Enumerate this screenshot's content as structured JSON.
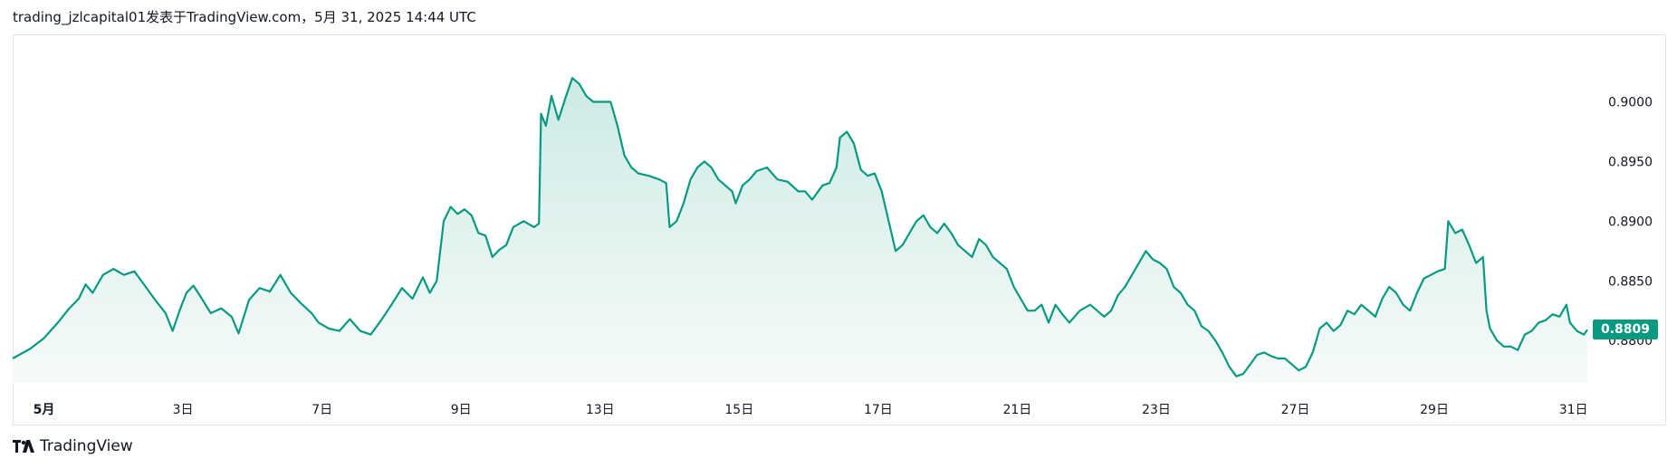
{
  "header": {
    "title": "trading_jzlcapital01发表于TradingView.com，5月 31, 2025 14:44 UTC"
  },
  "brand": {
    "logo_icon": "tradingview-logo-icon",
    "name": "TradingView"
  },
  "last_price_label": "0.8809",
  "colors": {
    "line": "#089981",
    "fill_top": "#cdeae4",
    "fill_bottom": "#f6fbfa",
    "tag_bg": "#089981",
    "axis_text": "#131722"
  },
  "chart_data": {
    "type": "area",
    "title": "",
    "xlabel": "",
    "ylabel": "",
    "grid": false,
    "x_ticks": [
      {
        "day": 1,
        "label": "5月"
      },
      {
        "day": 3,
        "label": "3日"
      },
      {
        "day": 5,
        "label": "7日"
      },
      {
        "day": 7,
        "label": "9日"
      },
      {
        "day": 9,
        "label": "13日"
      },
      {
        "day": 11,
        "label": "15日"
      },
      {
        "day": 13,
        "label": "17日"
      },
      {
        "day": 15,
        "label": "21日"
      },
      {
        "day": 17,
        "label": "23日"
      },
      {
        "day": 19,
        "label": "27日"
      },
      {
        "day": 21,
        "label": "29日"
      },
      {
        "day": 23,
        "label": "31日"
      }
    ],
    "y_ticks": [
      "0.8800",
      "0.8850",
      "0.8900",
      "0.8950",
      "0.9000"
    ],
    "xlim": [
      0.55,
      23.5
    ],
    "ylim": [
      0.87645,
      0.90565
    ],
    "last_value": 0.8809,
    "series": [
      {
        "points": [
          [
            0.55,
            0.8785
          ],
          [
            0.8,
            0.8793
          ],
          [
            1.0,
            0.8802
          ],
          [
            1.2,
            0.8815
          ],
          [
            1.35,
            0.8826
          ],
          [
            1.5,
            0.8835
          ],
          [
            1.6,
            0.8847
          ],
          [
            1.7,
            0.884
          ],
          [
            1.85,
            0.8855
          ],
          [
            2.0,
            0.886
          ],
          [
            2.15,
            0.8855
          ],
          [
            2.3,
            0.8858
          ],
          [
            2.45,
            0.8846
          ],
          [
            2.6,
            0.8834
          ],
          [
            2.75,
            0.8823
          ],
          [
            2.85,
            0.8808
          ],
          [
            2.95,
            0.8825
          ],
          [
            3.05,
            0.884
          ],
          [
            3.15,
            0.8846
          ],
          [
            3.25,
            0.8837
          ],
          [
            3.4,
            0.8823
          ],
          [
            3.55,
            0.8827
          ],
          [
            3.7,
            0.882
          ],
          [
            3.8,
            0.8806
          ],
          [
            3.95,
            0.8834
          ],
          [
            4.1,
            0.8844
          ],
          [
            4.25,
            0.8841
          ],
          [
            4.4,
            0.8855
          ],
          [
            4.55,
            0.884
          ],
          [
            4.7,
            0.8831
          ],
          [
            4.85,
            0.8823
          ],
          [
            4.95,
            0.8815
          ],
          [
            5.1,
            0.881
          ],
          [
            5.25,
            0.8808
          ],
          [
            5.4,
            0.8818
          ],
          [
            5.55,
            0.8808
          ],
          [
            5.7,
            0.8805
          ],
          [
            5.85,
            0.8817
          ],
          [
            6.0,
            0.883
          ],
          [
            6.15,
            0.8844
          ],
          [
            6.3,
            0.8835
          ],
          [
            6.45,
            0.8853
          ],
          [
            6.55,
            0.884
          ],
          [
            6.65,
            0.885
          ],
          [
            6.75,
            0.89
          ],
          [
            6.85,
            0.8912
          ],
          [
            6.95,
            0.8906
          ],
          [
            7.05,
            0.891
          ],
          [
            7.15,
            0.8905
          ],
          [
            7.25,
            0.889
          ],
          [
            7.35,
            0.8888
          ],
          [
            7.45,
            0.887
          ],
          [
            7.55,
            0.8876
          ],
          [
            7.65,
            0.888
          ],
          [
            7.75,
            0.8895
          ],
          [
            7.9,
            0.89
          ],
          [
            8.05,
            0.8895
          ],
          [
            8.12,
            0.8898
          ],
          [
            8.15,
            0.899
          ],
          [
            8.22,
            0.898
          ],
          [
            8.3,
            0.9005
          ],
          [
            8.4,
            0.8985
          ],
          [
            8.5,
            0.9003
          ],
          [
            8.6,
            0.902
          ],
          [
            8.7,
            0.9015
          ],
          [
            8.8,
            0.9005
          ],
          [
            8.9,
            0.9
          ],
          [
            9.0,
            0.9
          ],
          [
            9.15,
            0.9
          ],
          [
            9.25,
            0.898
          ],
          [
            9.35,
            0.8955
          ],
          [
            9.45,
            0.8945
          ],
          [
            9.55,
            0.894
          ],
          [
            9.7,
            0.8938
          ],
          [
            9.85,
            0.8935
          ],
          [
            9.95,
            0.8932
          ],
          [
            10.0,
            0.8895
          ],
          [
            10.1,
            0.89
          ],
          [
            10.2,
            0.8915
          ],
          [
            10.3,
            0.8935
          ],
          [
            10.4,
            0.8945
          ],
          [
            10.5,
            0.895
          ],
          [
            10.6,
            0.8945
          ],
          [
            10.7,
            0.8935
          ],
          [
            10.8,
            0.893
          ],
          [
            10.9,
            0.8925
          ],
          [
            10.95,
            0.8915
          ],
          [
            11.05,
            0.893
          ],
          [
            11.15,
            0.8935
          ],
          [
            11.25,
            0.8942
          ],
          [
            11.4,
            0.8945
          ],
          [
            11.55,
            0.8935
          ],
          [
            11.7,
            0.8933
          ],
          [
            11.85,
            0.8925
          ],
          [
            11.95,
            0.8925
          ],
          [
            12.05,
            0.8918
          ],
          [
            12.2,
            0.893
          ],
          [
            12.3,
            0.8932
          ],
          [
            12.4,
            0.8945
          ],
          [
            12.45,
            0.897
          ],
          [
            12.55,
            0.8975
          ],
          [
            12.65,
            0.8965
          ],
          [
            12.75,
            0.8943
          ],
          [
            12.85,
            0.8938
          ],
          [
            12.95,
            0.894
          ],
          [
            13.05,
            0.8925
          ],
          [
            13.15,
            0.89
          ],
          [
            13.25,
            0.8875
          ],
          [
            13.35,
            0.888
          ],
          [
            13.45,
            0.889
          ],
          [
            13.55,
            0.89
          ],
          [
            13.65,
            0.8905
          ],
          [
            13.75,
            0.8895
          ],
          [
            13.85,
            0.889
          ],
          [
            13.95,
            0.8898
          ],
          [
            14.05,
            0.889
          ],
          [
            14.15,
            0.888
          ],
          [
            14.25,
            0.8875
          ],
          [
            14.35,
            0.887
          ],
          [
            14.45,
            0.8885
          ],
          [
            14.55,
            0.888
          ],
          [
            14.65,
            0.887
          ],
          [
            14.75,
            0.8865
          ],
          [
            14.85,
            0.886
          ],
          [
            14.95,
            0.8845
          ],
          [
            15.05,
            0.8835
          ],
          [
            15.15,
            0.8825
          ],
          [
            15.25,
            0.8825
          ],
          [
            15.35,
            0.883
          ],
          [
            15.45,
            0.8815
          ],
          [
            15.55,
            0.883
          ],
          [
            15.65,
            0.8822
          ],
          [
            15.75,
            0.8815
          ],
          [
            15.9,
            0.8825
          ],
          [
            16.05,
            0.883
          ],
          [
            16.15,
            0.8825
          ],
          [
            16.25,
            0.882
          ],
          [
            16.35,
            0.8825
          ],
          [
            16.45,
            0.8838
          ],
          [
            16.55,
            0.8845
          ],
          [
            16.65,
            0.8855
          ],
          [
            16.75,
            0.8865
          ],
          [
            16.85,
            0.8875
          ],
          [
            16.95,
            0.8868
          ],
          [
            17.05,
            0.8865
          ],
          [
            17.15,
            0.886
          ],
          [
            17.25,
            0.8845
          ],
          [
            17.35,
            0.884
          ],
          [
            17.45,
            0.883
          ],
          [
            17.55,
            0.8825
          ],
          [
            17.65,
            0.8812
          ],
          [
            17.75,
            0.8808
          ],
          [
            17.85,
            0.88
          ],
          [
            17.95,
            0.879
          ],
          [
            18.05,
            0.8778
          ],
          [
            18.15,
            0.877
          ],
          [
            18.25,
            0.8772
          ],
          [
            18.35,
            0.878
          ],
          [
            18.45,
            0.8788
          ],
          [
            18.55,
            0.879
          ],
          [
            18.65,
            0.8787
          ],
          [
            18.75,
            0.8785
          ],
          [
            18.85,
            0.8785
          ],
          [
            18.95,
            0.878
          ],
          [
            19.05,
            0.8775
          ],
          [
            19.15,
            0.8778
          ],
          [
            19.25,
            0.879
          ],
          [
            19.35,
            0.881
          ],
          [
            19.45,
            0.8815
          ],
          [
            19.55,
            0.8808
          ],
          [
            19.65,
            0.8813
          ],
          [
            19.75,
            0.8825
          ],
          [
            19.85,
            0.8822
          ],
          [
            19.95,
            0.883
          ],
          [
            20.05,
            0.8825
          ],
          [
            20.15,
            0.882
          ],
          [
            20.25,
            0.8835
          ],
          [
            20.35,
            0.8845
          ],
          [
            20.45,
            0.884
          ],
          [
            20.55,
            0.883
          ],
          [
            20.65,
            0.8825
          ],
          [
            20.75,
            0.884
          ],
          [
            20.85,
            0.8852
          ],
          [
            20.95,
            0.8855
          ],
          [
            21.05,
            0.8858
          ],
          [
            21.15,
            0.886
          ],
          [
            21.2,
            0.89
          ],
          [
            21.3,
            0.889
          ],
          [
            21.4,
            0.8893
          ],
          [
            21.5,
            0.888
          ],
          [
            21.6,
            0.8865
          ],
          [
            21.7,
            0.887
          ],
          [
            21.75,
            0.8825
          ],
          [
            21.8,
            0.881
          ],
          [
            21.9,
            0.88
          ],
          [
            22.0,
            0.8795
          ],
          [
            22.1,
            0.8795
          ],
          [
            22.2,
            0.8792
          ],
          [
            22.3,
            0.8805
          ],
          [
            22.4,
            0.8808
          ],
          [
            22.5,
            0.8815
          ],
          [
            22.6,
            0.8817
          ],
          [
            22.7,
            0.8822
          ],
          [
            22.8,
            0.882
          ],
          [
            22.9,
            0.883
          ],
          [
            22.95,
            0.8815
          ],
          [
            23.05,
            0.8808
          ],
          [
            23.15,
            0.8805
          ],
          [
            23.2,
            0.8809
          ]
        ]
      }
    ]
  }
}
